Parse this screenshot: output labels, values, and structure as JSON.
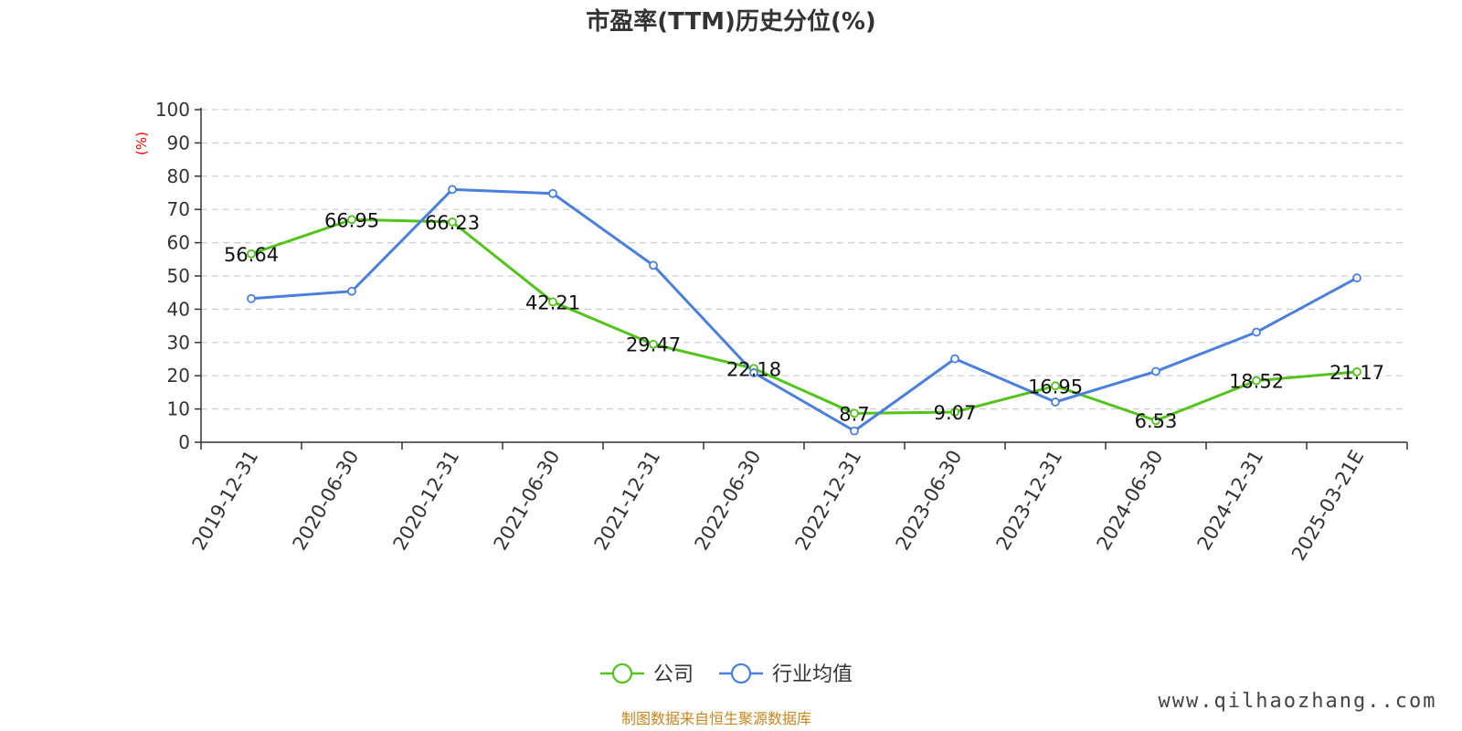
{
  "chart_data": {
    "type": "line",
    "title": "市盈率(TTM)历史分位(%)",
    "ylabel": "(%)",
    "ylim": [
      0,
      100
    ],
    "yticks": [
      0,
      10,
      20,
      30,
      40,
      50,
      60,
      70,
      80,
      90,
      100
    ],
    "grid": true,
    "legend_position": "bottom-center",
    "categories": [
      "2019-12-31",
      "2020-06-30",
      "2020-12-31",
      "2021-06-30",
      "2021-12-31",
      "2022-06-30",
      "2022-12-31",
      "2023-06-30",
      "2023-12-31",
      "2024-06-30",
      "2024-12-31",
      "2025-03-21E"
    ],
    "series": [
      {
        "name": "公司",
        "color": "#52c41a",
        "values": [
          56.64,
          66.95,
          66.23,
          42.21,
          29.47,
          22.18,
          8.7,
          9.07,
          16.95,
          6.53,
          18.52,
          21.17
        ],
        "labels": [
          "56.64",
          "66.95",
          "66.23",
          "42.21",
          "29.47",
          "22.18",
          "8.7",
          "9.07",
          "16.95",
          "6.53",
          "18.52",
          "21.17"
        ]
      },
      {
        "name": "行业均值",
        "color": "#4a7fdc",
        "values": [
          43.2,
          45.4,
          76.0,
          74.8,
          53.2,
          20.9,
          3.4,
          25.1,
          12.1,
          21.3,
          33.1,
          49.4
        ]
      }
    ]
  },
  "footer": {
    "source": "制图数据来自恒生聚源数据库",
    "watermark": "www.qilhaozhang..com"
  }
}
